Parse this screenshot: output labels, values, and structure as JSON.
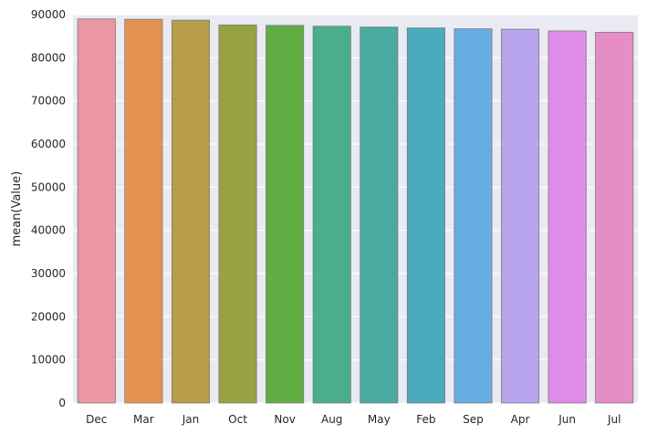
{
  "chart_data": {
    "type": "bar",
    "categories": [
      "Dec",
      "Mar",
      "Jan",
      "Oct",
      "Nov",
      "Aug",
      "May",
      "Feb",
      "Sep",
      "Apr",
      "Jun",
      "Jul"
    ],
    "values": [
      89000,
      88900,
      88700,
      87600,
      87500,
      87300,
      87100,
      86900,
      86700,
      86600,
      86200,
      85900
    ],
    "colors": [
      "#ea96a3",
      "#e49352",
      "#b99e4a",
      "#97a242",
      "#60ad44",
      "#49ae8a",
      "#49ab9f",
      "#4babbd",
      "#67aee5",
      "#b7a6ed",
      "#de8de8",
      "#e78dc6"
    ],
    "title": "",
    "xlabel": "",
    "ylabel": "mean(Value)",
    "ylim": [
      0,
      90000
    ],
    "yticks": [
      "0",
      "10000",
      "20000",
      "30000",
      "40000",
      "50000",
      "60000",
      "70000",
      "80000",
      "90000"
    ],
    "grid": true,
    "background": "#eaeaf2"
  }
}
